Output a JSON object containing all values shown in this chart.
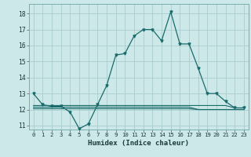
{
  "title": "",
  "xlabel": "Humidex (Indice chaleur)",
  "ylabel": "",
  "background_color": "#cce8e8",
  "grid_color": "#aacccc",
  "line_color": "#1a6b6b",
  "xlim": [
    -0.5,
    23.5
  ],
  "ylim": [
    10.75,
    18.6
  ],
  "yticks": [
    11,
    12,
    13,
    14,
    15,
    16,
    17,
    18
  ],
  "xticks": [
    0,
    1,
    2,
    3,
    4,
    5,
    6,
    7,
    8,
    9,
    10,
    11,
    12,
    13,
    14,
    15,
    16,
    17,
    18,
    19,
    20,
    21,
    22,
    23
  ],
  "main_line_x": [
    0,
    1,
    2,
    3,
    4,
    5,
    6,
    7,
    8,
    9,
    10,
    11,
    12,
    13,
    14,
    15,
    16,
    17,
    18,
    19,
    20,
    21,
    22,
    23
  ],
  "main_line_y": [
    13.0,
    12.3,
    12.2,
    12.2,
    11.85,
    10.8,
    11.1,
    12.3,
    13.5,
    15.4,
    15.5,
    16.6,
    17.0,
    17.0,
    16.3,
    18.1,
    16.1,
    16.1,
    14.6,
    13.0,
    13.0,
    12.5,
    12.1,
    12.1
  ],
  "flat_lines": [
    [
      12.25,
      12.25,
      12.25,
      12.25,
      12.25,
      12.25,
      12.25,
      12.25,
      12.25,
      12.25,
      12.25,
      12.25,
      12.25,
      12.25,
      12.25,
      12.25,
      12.25,
      12.25,
      12.25,
      12.25,
      12.25,
      12.25,
      12.1,
      12.1
    ],
    [
      12.05,
      12.05,
      12.05,
      12.05,
      12.05,
      12.05,
      12.05,
      12.05,
      12.05,
      12.05,
      12.05,
      12.05,
      12.05,
      12.05,
      12.05,
      12.05,
      12.05,
      12.05,
      12.0,
      12.0,
      12.0,
      12.0,
      12.0,
      12.0
    ],
    [
      12.15,
      12.15,
      12.15,
      12.15,
      12.15,
      12.15,
      12.15,
      12.15,
      12.15,
      12.15,
      12.15,
      12.15,
      12.15,
      12.15,
      12.15,
      12.15,
      12.15,
      12.15,
      12.0,
      12.0,
      12.0,
      12.0,
      12.0,
      12.0
    ]
  ]
}
